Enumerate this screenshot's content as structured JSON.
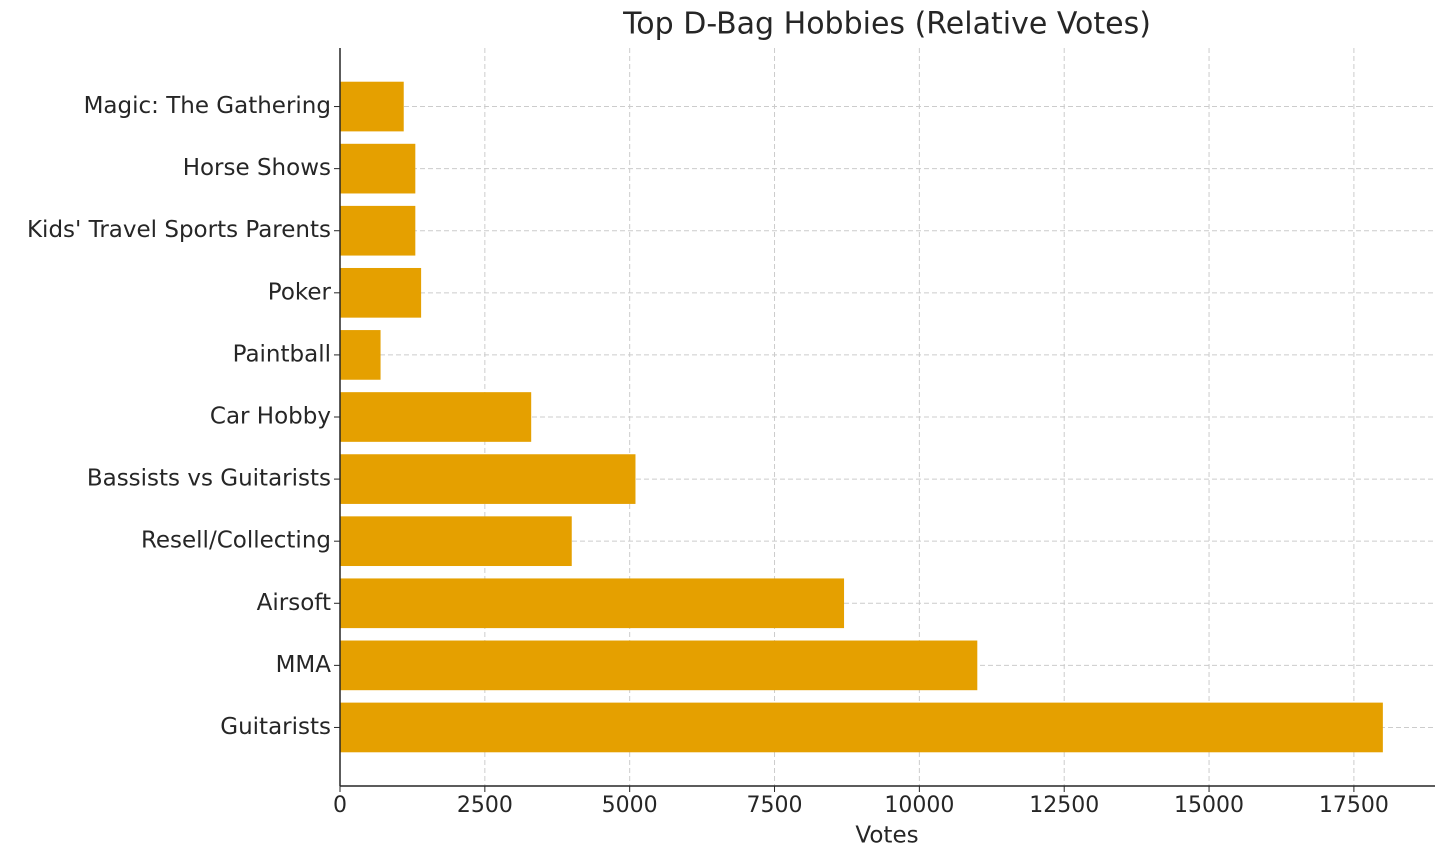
{
  "chart_data": {
    "type": "barh",
    "title": "Top D-Bag Hobbies (Relative Votes)",
    "x_label": "Votes",
    "categories": [
      "Guitarists",
      "MMA",
      "Airsoft",
      "Resell/Collecting",
      "Bassists vs Guitarists",
      "Car Hobby",
      "Paintball",
      "Poker",
      "Kids' Travel Sports Parents",
      "Horse Shows",
      "Magic: The Gathering"
    ],
    "values": [
      18000,
      11000,
      8700,
      4000,
      5100,
      3300,
      700,
      1400,
      1300,
      1300,
      1100
    ],
    "color": "#e5a000",
    "xlim": [
      0,
      18900
    ],
    "xticks": [
      0,
      2500,
      5000,
      7500,
      10000,
      12500,
      15000,
      17500
    ],
    "grid": true
  }
}
